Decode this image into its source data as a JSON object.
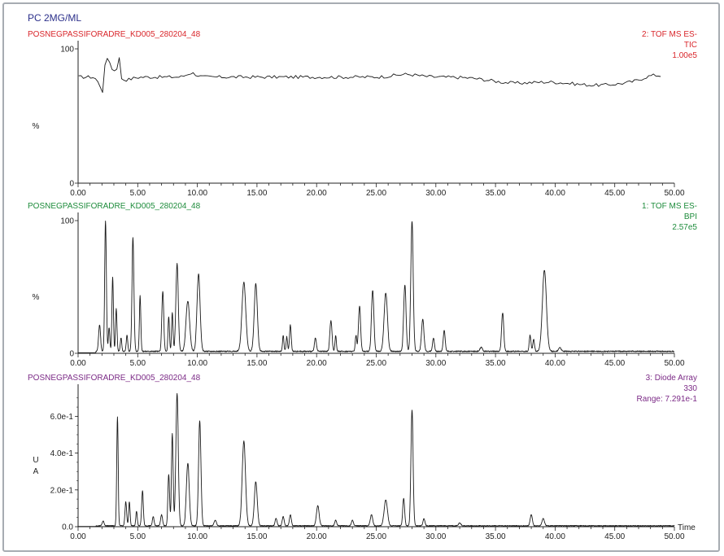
{
  "header": {
    "sample": "PC 2MG/ML",
    "sample_color": "#2b2f8a"
  },
  "x_axis": {
    "ticks": [
      "0.00",
      "5.00",
      "10.00",
      "15.00",
      "20.00",
      "25.00",
      "30.00",
      "35.00",
      "40.00",
      "45.00",
      "50.00"
    ],
    "label": "Time",
    "range": [
      0,
      50
    ]
  },
  "chart_data": [
    {
      "type": "line",
      "file": "POSNEGPASSIFORADRE_KD005_280204_48",
      "color": "#d9262b",
      "info": [
        "2: TOF MS ES-",
        "TIC",
        "1.00e5"
      ],
      "ylabel": "%",
      "yticks": [
        "100",
        "0"
      ],
      "ylim": [
        0,
        100
      ],
      "baseline": 79,
      "noise": 1.2,
      "peaks": [
        {
          "rt": 1.9,
          "h": -6,
          "w": 0.25
        },
        {
          "rt": 2.1,
          "h": -7,
          "w": 0.12
        },
        {
          "rt": 2.35,
          "h": 19,
          "w": 0.12
        },
        {
          "rt": 2.7,
          "h": 12,
          "w": 0.12
        },
        {
          "rt": 3.4,
          "h": 17,
          "w": 0.1
        },
        {
          "rt": 3.1,
          "h": 6,
          "w": 0.1
        },
        {
          "rt": 4.0,
          "h": -2,
          "w": 0.5
        },
        {
          "rt": 9.5,
          "h": 3,
          "w": 0.4
        },
        {
          "rt": 27.5,
          "h": 2,
          "w": 1.0
        },
        {
          "rt": 43.5,
          "h": -6,
          "w": 3.0
        },
        {
          "rt": 36.5,
          "h": -4,
          "w": 2.0
        },
        {
          "rt": 48.2,
          "h": 3,
          "w": 0.8
        }
      ]
    },
    {
      "type": "line",
      "file": "POSNEGPASSIFORADRE_KD005_280204_48",
      "color": "#1e8c3c",
      "info": [
        "1: TOF MS ES-",
        "BPI",
        "2.57e5"
      ],
      "ylabel": "%",
      "yticks": [
        "100",
        "0"
      ],
      "ylim": [
        0,
        100
      ],
      "baseline": 1.5,
      "noise": 0.4,
      "peaks": [
        {
          "rt": 1.8,
          "h": 20,
          "w": 0.08
        },
        {
          "rt": 2.3,
          "h": 98,
          "w": 0.07
        },
        {
          "rt": 2.6,
          "h": 18,
          "w": 0.06
        },
        {
          "rt": 2.9,
          "h": 56,
          "w": 0.06
        },
        {
          "rt": 3.2,
          "h": 32,
          "w": 0.06
        },
        {
          "rt": 3.6,
          "h": 10,
          "w": 0.06
        },
        {
          "rt": 4.1,
          "h": 12,
          "w": 0.06
        },
        {
          "rt": 4.6,
          "h": 86,
          "w": 0.08
        },
        {
          "rt": 5.2,
          "h": 42,
          "w": 0.06
        },
        {
          "rt": 7.1,
          "h": 45,
          "w": 0.08
        },
        {
          "rt": 7.6,
          "h": 26,
          "w": 0.06
        },
        {
          "rt": 7.9,
          "h": 29,
          "w": 0.06
        },
        {
          "rt": 8.3,
          "h": 66,
          "w": 0.1
        },
        {
          "rt": 9.2,
          "h": 38,
          "w": 0.15
        },
        {
          "rt": 10.1,
          "h": 58,
          "w": 0.13
        },
        {
          "rt": 13.9,
          "h": 52,
          "w": 0.16
        },
        {
          "rt": 14.9,
          "h": 51,
          "w": 0.13
        },
        {
          "rt": 17.2,
          "h": 12,
          "w": 0.06
        },
        {
          "rt": 17.5,
          "h": 11,
          "w": 0.06
        },
        {
          "rt": 17.8,
          "h": 20,
          "w": 0.07
        },
        {
          "rt": 19.9,
          "h": 10,
          "w": 0.08
        },
        {
          "rt": 21.2,
          "h": 23,
          "w": 0.09
        },
        {
          "rt": 21.6,
          "h": 12,
          "w": 0.06
        },
        {
          "rt": 23.3,
          "h": 12,
          "w": 0.06
        },
        {
          "rt": 23.6,
          "h": 34,
          "w": 0.09
        },
        {
          "rt": 24.7,
          "h": 46,
          "w": 0.1
        },
        {
          "rt": 25.8,
          "h": 44,
          "w": 0.14
        },
        {
          "rt": 27.4,
          "h": 50,
          "w": 0.1
        },
        {
          "rt": 28.0,
          "h": 98,
          "w": 0.1
        },
        {
          "rt": 28.9,
          "h": 24,
          "w": 0.1
        },
        {
          "rt": 29.8,
          "h": 10,
          "w": 0.08
        },
        {
          "rt": 30.7,
          "h": 16,
          "w": 0.08
        },
        {
          "rt": 33.8,
          "h": 3,
          "w": 0.1
        },
        {
          "rt": 35.6,
          "h": 29,
          "w": 0.09
        },
        {
          "rt": 37.9,
          "h": 12,
          "w": 0.07
        },
        {
          "rt": 38.2,
          "h": 9,
          "w": 0.07
        },
        {
          "rt": 39.1,
          "h": 61,
          "w": 0.17
        },
        {
          "rt": 40.4,
          "h": 3,
          "w": 0.1
        }
      ]
    },
    {
      "type": "line",
      "file": "POSNEGPASSIFORADRE_KD005_280204_48",
      "color": "#7b2a86",
      "info": [
        "3: Diode Array",
        "330",
        "Range: 7.291e-1"
      ],
      "ylabel": "U\nA",
      "yticks": [
        "6.0e-1",
        "4.0e-1",
        "2.0e-1",
        "0.0"
      ],
      "ytick_values": [
        0.6,
        0.4,
        0.2,
        0.0
      ],
      "ylim": [
        0,
        0.73
      ],
      "baseline": 0.005,
      "noise": 0.002,
      "peaks": [
        {
          "rt": 2.1,
          "h": 0.025,
          "w": 0.08
        },
        {
          "rt": 3.3,
          "h": 0.59,
          "w": 0.06
        },
        {
          "rt": 4.0,
          "h": 0.13,
          "w": 0.07
        },
        {
          "rt": 4.3,
          "h": 0.13,
          "w": 0.06
        },
        {
          "rt": 4.9,
          "h": 0.08,
          "w": 0.06
        },
        {
          "rt": 5.4,
          "h": 0.19,
          "w": 0.07
        },
        {
          "rt": 6.3,
          "h": 0.05,
          "w": 0.07
        },
        {
          "rt": 7.0,
          "h": 0.06,
          "w": 0.08
        },
        {
          "rt": 7.6,
          "h": 0.28,
          "w": 0.07
        },
        {
          "rt": 7.9,
          "h": 0.5,
          "w": 0.07
        },
        {
          "rt": 8.3,
          "h": 0.72,
          "w": 0.1
        },
        {
          "rt": 9.2,
          "h": 0.34,
          "w": 0.12
        },
        {
          "rt": 10.2,
          "h": 0.57,
          "w": 0.1
        },
        {
          "rt": 11.5,
          "h": 0.03,
          "w": 0.1
        },
        {
          "rt": 13.9,
          "h": 0.46,
          "w": 0.14
        },
        {
          "rt": 14.9,
          "h": 0.24,
          "w": 0.12
        },
        {
          "rt": 16.6,
          "h": 0.04,
          "w": 0.08
        },
        {
          "rt": 17.2,
          "h": 0.05,
          "w": 0.08
        },
        {
          "rt": 17.8,
          "h": 0.06,
          "w": 0.08
        },
        {
          "rt": 20.1,
          "h": 0.11,
          "w": 0.11
        },
        {
          "rt": 21.6,
          "h": 0.03,
          "w": 0.08
        },
        {
          "rt": 23.0,
          "h": 0.03,
          "w": 0.08
        },
        {
          "rt": 24.6,
          "h": 0.06,
          "w": 0.1
        },
        {
          "rt": 25.8,
          "h": 0.14,
          "w": 0.14
        },
        {
          "rt": 27.3,
          "h": 0.15,
          "w": 0.08
        },
        {
          "rt": 28.0,
          "h": 0.63,
          "w": 0.09
        },
        {
          "rt": 29.0,
          "h": 0.04,
          "w": 0.08
        },
        {
          "rt": 32.0,
          "h": 0.015,
          "w": 0.1
        },
        {
          "rt": 38.0,
          "h": 0.06,
          "w": 0.09
        },
        {
          "rt": 39.0,
          "h": 0.04,
          "w": 0.1
        }
      ]
    }
  ]
}
